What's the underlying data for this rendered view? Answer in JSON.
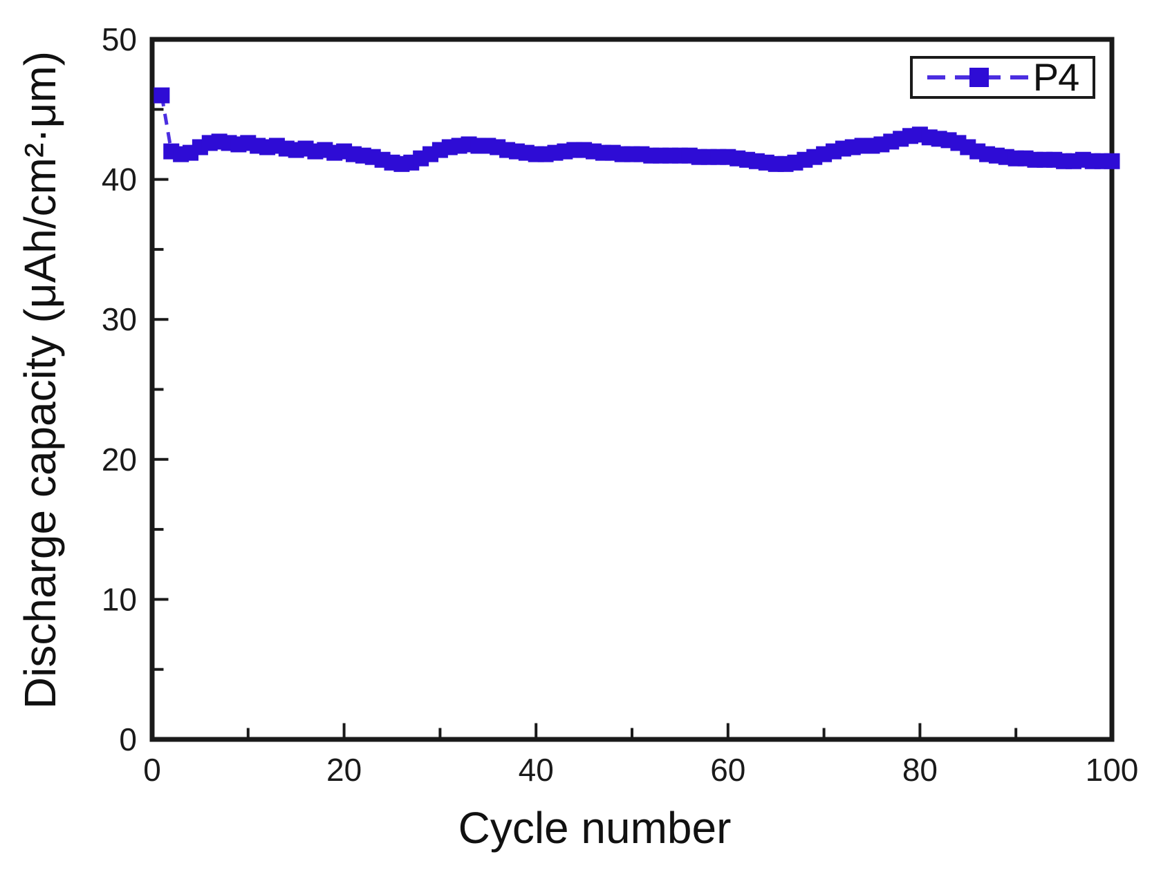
{
  "chart_data": {
    "type": "line",
    "title": "",
    "xlabel": "Cycle number",
    "ylabel": "Discharge capacity (μAh/cm²·μm)",
    "xlim": [
      0,
      100
    ],
    "ylim": [
      0,
      50
    ],
    "x_ticks": [
      0,
      20,
      40,
      60,
      80,
      100
    ],
    "x_minor_ticks": [
      10,
      30,
      50,
      70,
      90
    ],
    "y_ticks": [
      0,
      10,
      20,
      30,
      40,
      50
    ],
    "y_minor_ticks": [
      5,
      15,
      25,
      35,
      45
    ],
    "grid": false,
    "legend_position": "top-right",
    "axis_color": "#1a1a1a",
    "tick_label_color": "#1a1a1a",
    "series": [
      {
        "name": "P4",
        "marker": "square",
        "line_style": "dashed",
        "color": "#2e0cd5",
        "line_color": "#4b2ee0",
        "x": [
          1,
          2,
          3,
          4,
          5,
          6,
          7,
          8,
          9,
          10,
          11,
          12,
          13,
          14,
          15,
          16,
          17,
          18,
          19,
          20,
          21,
          22,
          23,
          24,
          25,
          26,
          27,
          28,
          29,
          30,
          31,
          32,
          33,
          34,
          35,
          36,
          37,
          38,
          39,
          40,
          41,
          42,
          43,
          44,
          45,
          46,
          47,
          48,
          49,
          50,
          51,
          52,
          53,
          54,
          55,
          56,
          57,
          58,
          59,
          60,
          61,
          62,
          63,
          64,
          65,
          66,
          67,
          68,
          69,
          70,
          71,
          72,
          73,
          74,
          75,
          76,
          77,
          78,
          79,
          80,
          81,
          82,
          83,
          84,
          85,
          86,
          87,
          88,
          89,
          90,
          91,
          92,
          93,
          94,
          95,
          96,
          97,
          98,
          99,
          100
        ],
        "y": [
          46.0,
          42.0,
          41.8,
          41.9,
          42.3,
          42.6,
          42.7,
          42.6,
          42.5,
          42.6,
          42.4,
          42.3,
          42.4,
          42.2,
          42.1,
          42.2,
          42.0,
          42.1,
          41.9,
          42.0,
          41.8,
          41.7,
          41.6,
          41.4,
          41.2,
          41.1,
          41.2,
          41.5,
          41.8,
          42.1,
          42.3,
          42.4,
          42.5,
          42.4,
          42.4,
          42.3,
          42.1,
          42.0,
          41.9,
          41.8,
          41.8,
          41.9,
          42.0,
          42.1,
          42.1,
          42.0,
          41.9,
          41.9,
          41.8,
          41.8,
          41.8,
          41.7,
          41.7,
          41.7,
          41.7,
          41.7,
          41.6,
          41.6,
          41.6,
          41.6,
          41.5,
          41.4,
          41.3,
          41.2,
          41.1,
          41.1,
          41.2,
          41.4,
          41.6,
          41.8,
          42.0,
          42.2,
          42.3,
          42.4,
          42.4,
          42.5,
          42.7,
          42.9,
          43.1,
          43.2,
          43.0,
          42.9,
          42.8,
          42.6,
          42.3,
          42.0,
          41.8,
          41.7,
          41.6,
          41.5,
          41.5,
          41.4,
          41.4,
          41.4,
          41.3,
          41.3,
          41.4,
          41.3,
          41.3,
          41.3
        ]
      }
    ]
  }
}
